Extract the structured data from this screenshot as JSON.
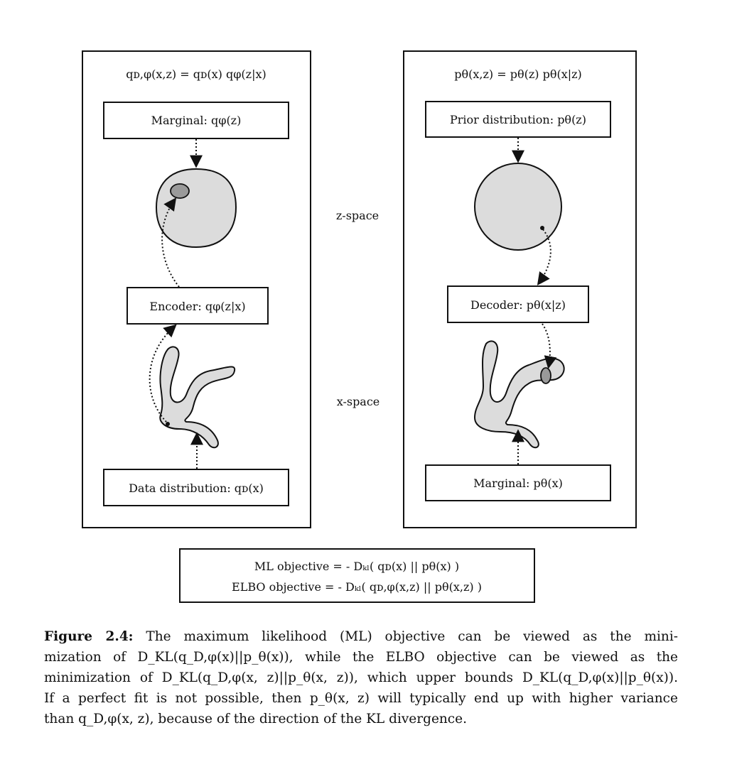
{
  "left_panel": {
    "equation": "qᴅ,φ(x,z) = qᴅ(x) qφ(z|x)",
    "marginal": "Marginal: qφ(z)",
    "encoder": "Encoder: qφ(z|x)",
    "data_distribution": "Data distribution: qᴅ(x)"
  },
  "right_panel": {
    "equation": "pθ(x,z) = pθ(z) pθ(x|z)",
    "prior": "Prior distribution: pθ(z)",
    "decoder": "Decoder: pθ(x|z)",
    "marginal": "Marginal: pθ(x)"
  },
  "space_labels": {
    "z_space": "z-space",
    "x_space": "x-space"
  },
  "objectives": {
    "ml": "ML objective = - Dₖₗ( qᴅ(x) || pθ(x) )",
    "elbo": "ELBO objective = - Dₖₗ( qᴅ,φ(x,z) || pθ(x,z) )"
  },
  "caption": {
    "lead": "Figure 2.4:",
    "lines": [
      " The maximum likelihood (ML) objective can be viewed as the mini-",
      "mization of D_KL(q_D,φ(x)||p_θ(x)), while the ELBO objective can be viewed as the",
      "minimization of D_KL(q_D,φ(x, z)||p_θ(x, z)), which upper bounds D_KL(q_D,φ(x)||p_θ(x)).",
      "If a perfect fit is not possible, then p_θ(x, z) will typically end up with higher variance",
      "than q_D,φ(x, z), because of the direction of the KL divergence."
    ]
  },
  "colors": {
    "stroke": "#111111",
    "blob_fill": "#dcdcdc",
    "spot_fill": "#9a9a9a"
  }
}
